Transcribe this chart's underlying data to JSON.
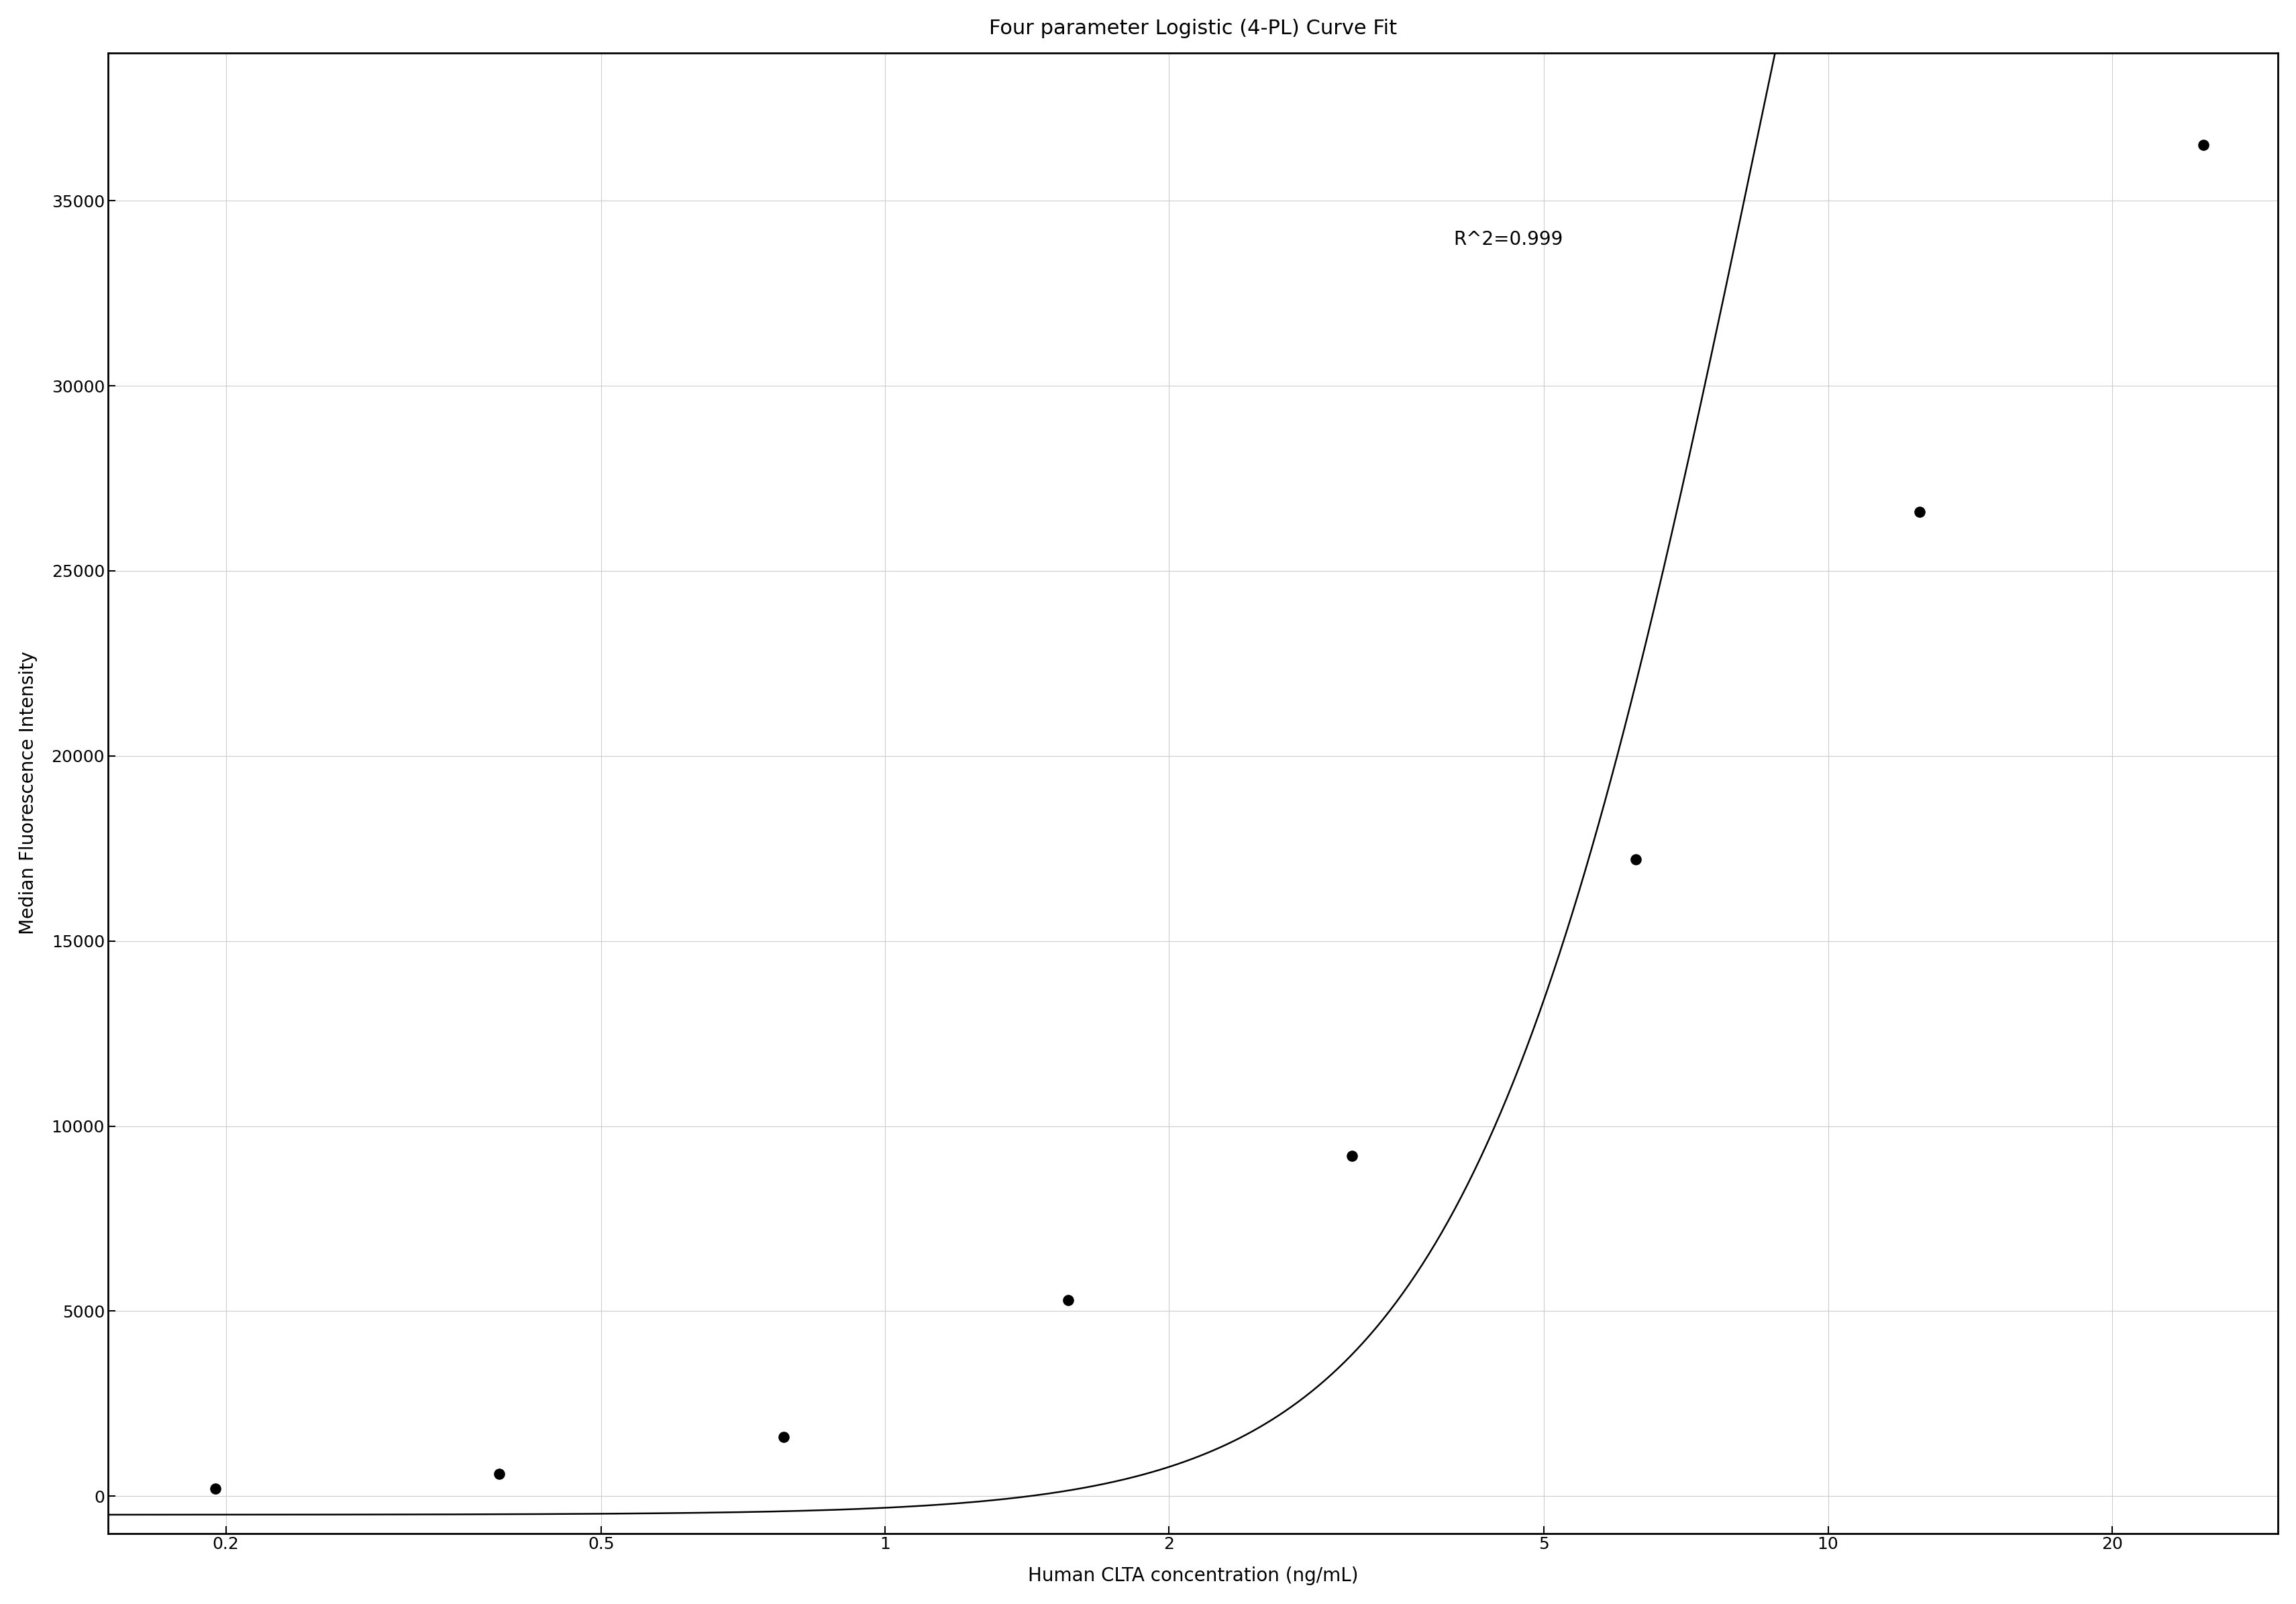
{
  "title": "Four parameter Logistic (4-PL) Curve Fit",
  "xlabel": "Human CLTA concentration (ng/mL)",
  "ylabel": "Median Fluorescence Intensity",
  "r_squared_text": "R^2=0.999",
  "data_x": [
    0.195,
    0.39,
    0.781,
    1.563,
    3.125,
    6.25,
    12.5,
    25.0
  ],
  "data_y": [
    200,
    600,
    1600,
    5300,
    9200,
    17200,
    26600,
    36500
  ],
  "x_lim": [
    0.15,
    30
  ],
  "y_lim": [
    -1000,
    39000
  ],
  "y_ticks": [
    0,
    5000,
    10000,
    15000,
    20000,
    25000,
    30000,
    35000
  ],
  "4pl_A": -500,
  "4pl_B": 2.8,
  "4pl_C": 8.5,
  "4pl_D": 75000,
  "background_color": "#ffffff",
  "line_color": "#000000",
  "dot_color": "#000000",
  "grid_color": "#cccccc",
  "title_fontsize": 22,
  "label_fontsize": 20,
  "tick_fontsize": 18,
  "annotation_fontsize": 20
}
